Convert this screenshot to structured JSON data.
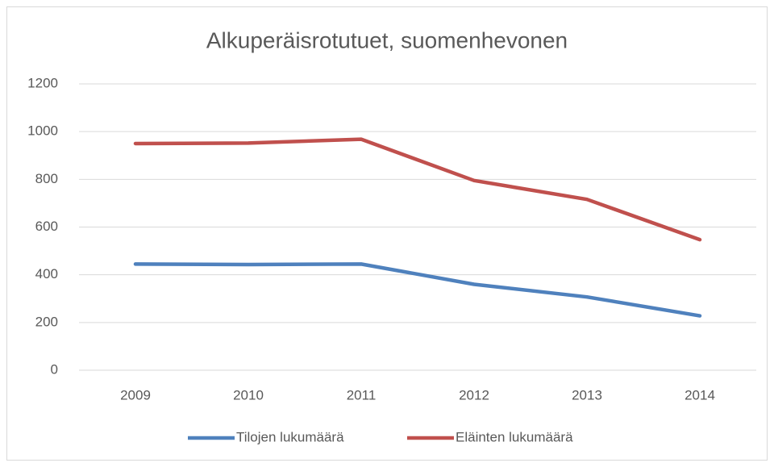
{
  "chart_data": {
    "type": "line",
    "title": "Alkuperäisrotutuet, suomenhevonen",
    "categories": [
      "2009",
      "2010",
      "2011",
      "2012",
      "2013",
      "2014"
    ],
    "series": [
      {
        "name": "Tilojen lukumäärä",
        "color": "#4f81bd",
        "values": [
          445,
          443,
          445,
          360,
          307,
          228
        ]
      },
      {
        "name": "Eläinten lukumäärä",
        "color": "#c0504d",
        "values": [
          950,
          952,
          968,
          795,
          716,
          547
        ]
      }
    ],
    "ylim": [
      0,
      1200
    ],
    "yticks": [
      0,
      200,
      400,
      600,
      800,
      1000,
      1200
    ],
    "grid": true,
    "legend": "bottom"
  }
}
